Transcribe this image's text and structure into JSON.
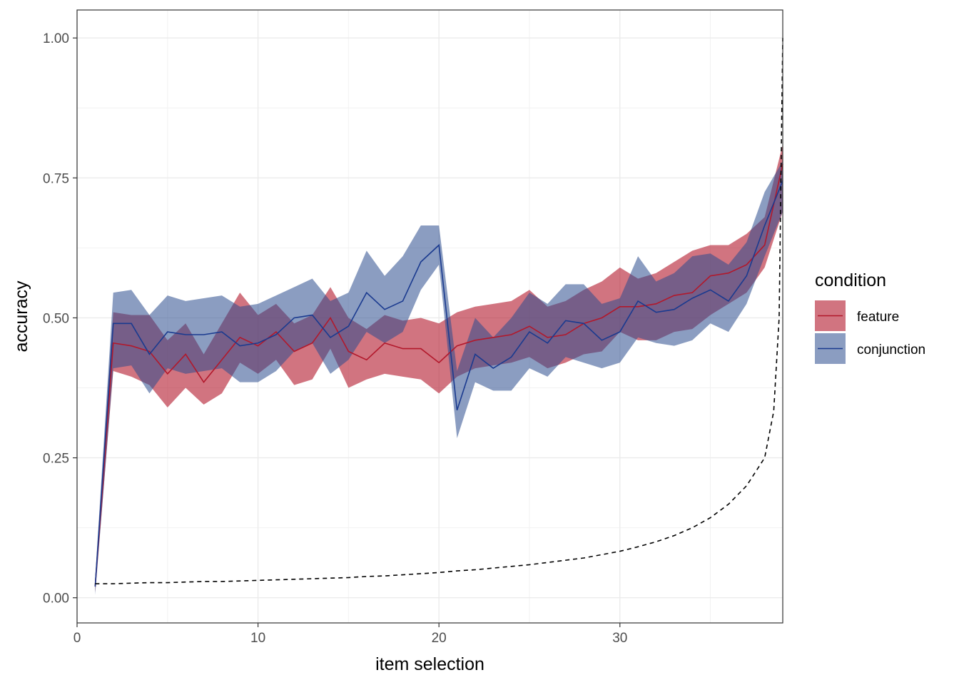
{
  "chart_data": {
    "type": "line",
    "xlabel": "item selection",
    "ylabel": "accuracy",
    "xlim": [
      0,
      39
    ],
    "ylim": [
      -0.045,
      1.05
    ],
    "x_ticks": [
      0,
      10,
      20,
      30
    ],
    "y_ticks": [
      0.0,
      0.25,
      0.5,
      0.75,
      1.0
    ],
    "x_tick_labels": [
      "0",
      "10",
      "20",
      "30"
    ],
    "y_tick_labels": [
      "0.00",
      "0.25",
      "0.50",
      "0.75",
      "1.00"
    ],
    "grid": true,
    "legend": {
      "title": "condition",
      "position": "right"
    },
    "x": [
      1,
      2,
      3,
      4,
      5,
      6,
      7,
      8,
      9,
      10,
      11,
      12,
      13,
      14,
      15,
      16,
      17,
      18,
      19,
      20,
      21,
      22,
      23,
      24,
      25,
      26,
      27,
      28,
      29,
      30,
      31,
      32,
      33,
      34,
      35,
      36,
      37,
      38,
      39
    ],
    "series": [
      {
        "name": "feature",
        "color": "#b2182b",
        "ribbon_color": "#b2182b",
        "ribbon_opacity": 0.6,
        "values": [
          0.02,
          0.455,
          0.45,
          0.44,
          0.4,
          0.435,
          0.385,
          0.425,
          0.465,
          0.45,
          0.475,
          0.44,
          0.455,
          0.5,
          0.44,
          0.425,
          0.455,
          0.445,
          0.445,
          0.42,
          0.45,
          0.46,
          0.465,
          0.47,
          0.485,
          0.465,
          0.47,
          0.49,
          0.5,
          0.52,
          0.52,
          0.525,
          0.54,
          0.545,
          0.575,
          0.58,
          0.595,
          0.63,
          0.775
        ],
        "lower": [
          0.01,
          0.405,
          0.395,
          0.38,
          0.34,
          0.375,
          0.345,
          0.365,
          0.42,
          0.4,
          0.425,
          0.38,
          0.39,
          0.445,
          0.375,
          0.39,
          0.4,
          0.395,
          0.39,
          0.365,
          0.395,
          0.41,
          0.415,
          0.42,
          0.43,
          0.41,
          0.42,
          0.435,
          0.44,
          0.475,
          0.46,
          0.46,
          0.475,
          0.48,
          0.505,
          0.525,
          0.545,
          0.59,
          0.69
        ],
        "upper": [
          0.035,
          0.51,
          0.505,
          0.505,
          0.46,
          0.49,
          0.435,
          0.49,
          0.545,
          0.505,
          0.525,
          0.49,
          0.505,
          0.555,
          0.5,
          0.48,
          0.505,
          0.495,
          0.5,
          0.49,
          0.51,
          0.52,
          0.525,
          0.53,
          0.55,
          0.52,
          0.53,
          0.55,
          0.565,
          0.59,
          0.57,
          0.58,
          0.6,
          0.62,
          0.63,
          0.63,
          0.65,
          0.68,
          0.81
        ]
      },
      {
        "name": "conjunction",
        "color": "#1a3a8f",
        "ribbon_color": "#2c4d8e",
        "ribbon_opacity": 0.55,
        "values": [
          0.02,
          0.49,
          0.49,
          0.435,
          0.475,
          0.47,
          0.47,
          0.475,
          0.45,
          0.455,
          0.47,
          0.5,
          0.505,
          0.465,
          0.485,
          0.545,
          0.515,
          0.53,
          0.6,
          0.63,
          0.335,
          0.435,
          0.41,
          0.43,
          0.475,
          0.455,
          0.495,
          0.49,
          0.46,
          0.475,
          0.53,
          0.51,
          0.515,
          0.535,
          0.55,
          0.53,
          0.575,
          0.665,
          0.745
        ],
        "lower": [
          0.005,
          0.41,
          0.415,
          0.365,
          0.41,
          0.4,
          0.405,
          0.41,
          0.385,
          0.385,
          0.405,
          0.44,
          0.455,
          0.4,
          0.425,
          0.475,
          0.455,
          0.475,
          0.55,
          0.595,
          0.285,
          0.385,
          0.37,
          0.37,
          0.41,
          0.395,
          0.43,
          0.42,
          0.41,
          0.42,
          0.465,
          0.455,
          0.45,
          0.46,
          0.49,
          0.475,
          0.525,
          0.61,
          0.69
        ],
        "upper": [
          0.035,
          0.545,
          0.55,
          0.505,
          0.54,
          0.53,
          0.535,
          0.54,
          0.52,
          0.525,
          0.54,
          0.555,
          0.57,
          0.53,
          0.545,
          0.62,
          0.575,
          0.61,
          0.665,
          0.665,
          0.405,
          0.5,
          0.465,
          0.5,
          0.545,
          0.525,
          0.56,
          0.56,
          0.525,
          0.535,
          0.61,
          0.565,
          0.58,
          0.61,
          0.615,
          0.595,
          0.635,
          0.725,
          0.78
        ]
      },
      {
        "name": "",
        "style": "dashed",
        "color": "#000000",
        "values": [
          0.025,
          0.025,
          0.026,
          0.027,
          0.027,
          0.028,
          0.029,
          0.029,
          0.03,
          0.031,
          0.032,
          0.033,
          0.034,
          0.035,
          0.036,
          0.038,
          0.039,
          0.041,
          0.043,
          0.045,
          0.048,
          0.05,
          0.053,
          0.056,
          0.059,
          0.063,
          0.067,
          0.071,
          0.077,
          0.083,
          0.091,
          0.1,
          0.111,
          0.125,
          0.143,
          0.167,
          0.2,
          0.25,
          0.333,
          0.5,
          1.0
        ],
        "x": [
          1,
          2,
          3,
          4,
          5,
          6,
          7,
          8,
          9,
          10,
          11,
          12,
          13,
          14,
          15,
          16,
          17,
          18,
          19,
          20,
          21,
          22,
          23,
          24,
          25,
          26,
          27,
          28,
          29,
          30,
          31,
          32,
          33,
          34,
          35,
          36,
          37,
          38,
          38.5,
          38.8,
          39
        ]
      }
    ]
  }
}
